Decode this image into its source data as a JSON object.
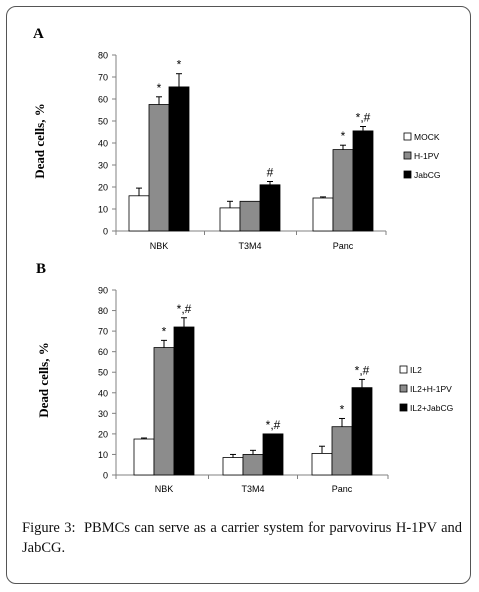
{
  "panels": [
    {
      "letter": "A"
    },
    {
      "letter": "B"
    }
  ],
  "caption": {
    "lead": "Figure 3:",
    "text": "PBMCs can serve as a carrier system for parvovirus H-1PV and JabCG."
  },
  "colors": {
    "white_bar": "#ffffff",
    "gray_bar": "#8c8c8c",
    "black_bar": "#000000",
    "axis": "#808080",
    "text": "#000000"
  },
  "chart_data": [
    {
      "type": "bar",
      "panel": "A",
      "title": "",
      "xlabel": "",
      "ylabel": "Dead cells, %",
      "ylim": [
        0,
        80
      ],
      "yticks": [
        0,
        10,
        20,
        30,
        40,
        50,
        60,
        70,
        80
      ],
      "categories": [
        "NBK",
        "T3M4",
        "Panc"
      ],
      "legend_placement": "right",
      "grid": false,
      "series": [
        {
          "name": "MOCK",
          "fill": "white",
          "values": [
            16,
            10.5,
            15
          ],
          "errors": [
            3.5,
            3,
            0.5
          ],
          "annotations": [
            "",
            "",
            ""
          ]
        },
        {
          "name": "H-1PV",
          "fill": "gray",
          "values": [
            57.5,
            13.5,
            37
          ],
          "errors": [
            3.5,
            0,
            2
          ],
          "annotations": [
            "*",
            "",
            "*"
          ]
        },
        {
          "name": "JabCG",
          "fill": "black",
          "values": [
            65.5,
            21,
            45.5
          ],
          "errors": [
            6,
            1.5,
            2
          ],
          "annotations": [
            "*",
            "#",
            "*,#"
          ]
        }
      ]
    },
    {
      "type": "bar",
      "panel": "B",
      "title": "",
      "xlabel": "",
      "ylabel": "Dead cells, %",
      "ylim": [
        0,
        90
      ],
      "yticks": [
        0,
        10,
        20,
        30,
        40,
        50,
        60,
        70,
        80,
        90
      ],
      "categories": [
        "NBK",
        "T3M4",
        "Panc"
      ],
      "legend_placement": "right",
      "grid": false,
      "series": [
        {
          "name": "IL2",
          "fill": "white",
          "values": [
            17.5,
            8.5,
            10.5
          ],
          "errors": [
            0.5,
            1.5,
            3.5
          ],
          "annotations": [
            "",
            "",
            ""
          ]
        },
        {
          "name": "IL2+H-1PV",
          "fill": "gray",
          "values": [
            62,
            10,
            23.5
          ],
          "errors": [
            3.5,
            2,
            4
          ],
          "annotations": [
            "*",
            "",
            "*"
          ]
        },
        {
          "name": "IL2+JabCG",
          "fill": "black",
          "values": [
            72,
            20,
            42.5
          ],
          "errors": [
            4.5,
            0,
            4
          ],
          "annotations": [
            "*,#",
            "*,#",
            "*,#"
          ]
        }
      ]
    }
  ]
}
